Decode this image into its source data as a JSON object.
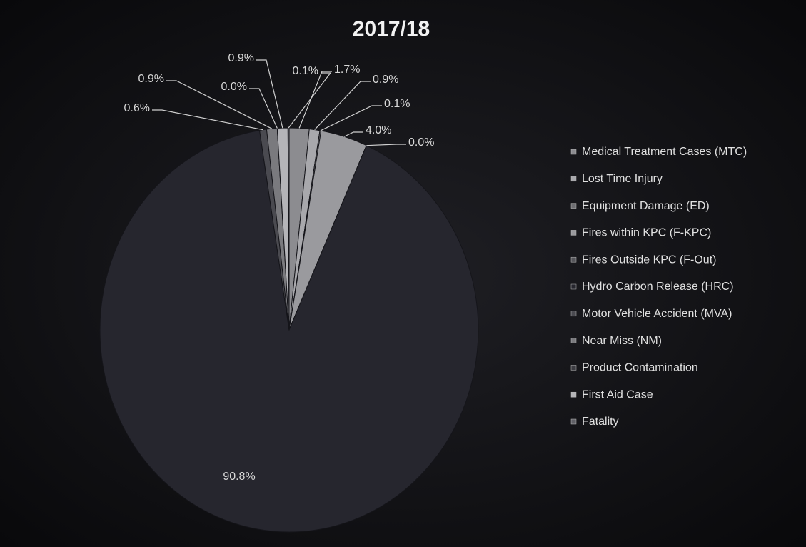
{
  "chart_data": {
    "type": "pie",
    "title": "2017/18",
    "categories": [
      "Medical Treatment Cases (MTC)",
      "Lost Time Injury",
      "Equipment Damage (ED)",
      "Fires within KPC (F-KPC)",
      "Fires Outside KPC (F-Out)",
      "Hydro Carbon Release (HRC)",
      "Motor Vehicle Accident (MVA)",
      "Near Miss (NM)",
      "Product Contamination",
      "First Aid Case",
      "Fatality"
    ],
    "values": [
      1.7,
      0.9,
      0.1,
      4.0,
      0.0,
      90.8,
      0.6,
      0.9,
      0.0,
      0.9,
      0.1
    ],
    "value_labels": [
      "1.7%",
      "0.9%",
      "0.1%",
      "4.0%",
      "0.0%",
      "90.8%",
      "0.6%",
      "0.9%",
      "0.0%",
      "0.9%",
      "0.1%"
    ],
    "colors": [
      "#8c8c90",
      "#a8a8ac",
      "#6e6e72",
      "#9a9a9e",
      "#55555a",
      "#26262e",
      "#4a4a50",
      "#7a7a7e",
      "#3c3c42",
      "#b4b4b8",
      "#606066"
    ],
    "legend": "right"
  }
}
